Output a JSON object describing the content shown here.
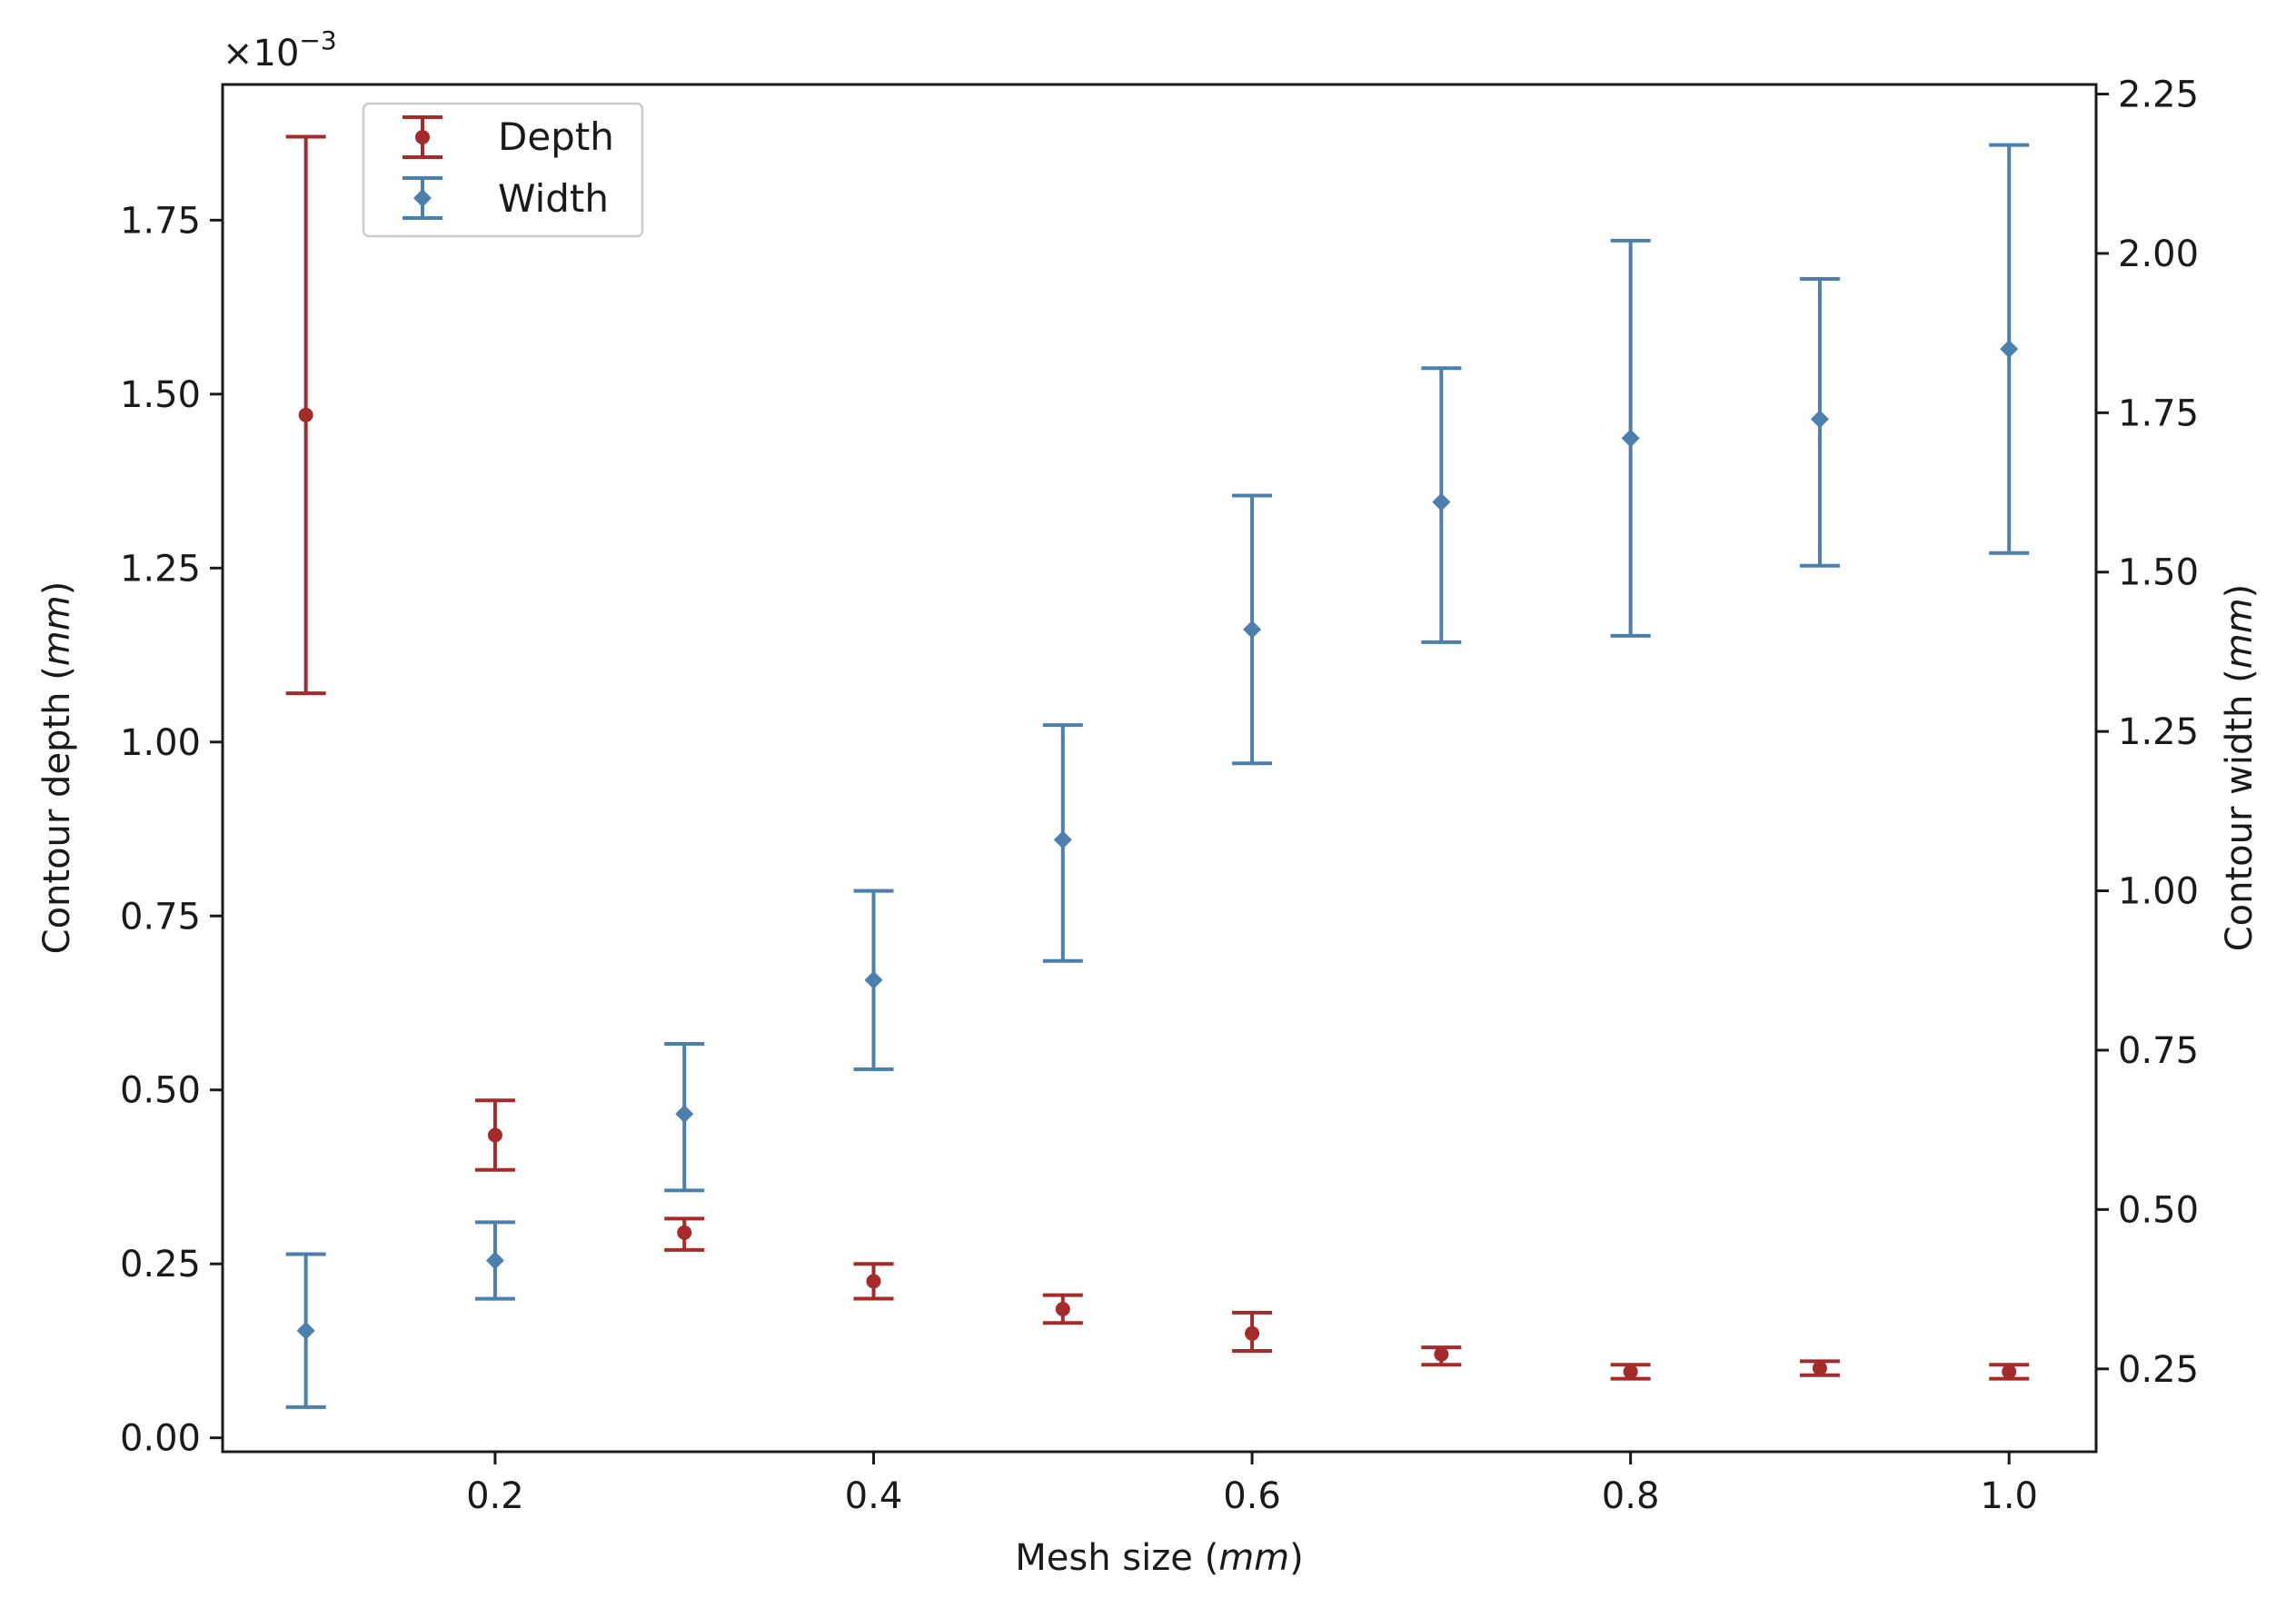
{
  "chart_data": {
    "type": "errorbar",
    "title": "",
    "xlabel": "Mesh size",
    "xlabel_unit": "mm",
    "ylabel_left": "Contour depth",
    "ylabel_left_unit": "mm",
    "ylabel_right": "Contour width",
    "ylabel_right_unit": "mm",
    "left_offset_text": "×10",
    "left_offset_exp": "−3",
    "xlim": [
      0.056,
      1.046
    ],
    "ylim_left": [
      -0.02,
      1.945
    ],
    "ylim_right": [
      0.12,
      2.265
    ],
    "x_ticks": [
      0.2,
      0.4,
      0.6,
      0.8,
      1.0
    ],
    "x_tick_labels": [
      "0.2",
      "0.4",
      "0.6",
      "0.8",
      "1.0"
    ],
    "y_left_ticks": [
      0.0,
      0.25,
      0.5,
      0.75,
      1.0,
      1.25,
      1.5,
      1.75
    ],
    "y_left_tick_labels": [
      "0.00",
      "0.25",
      "0.50",
      "0.75",
      "1.00",
      "1.25",
      "1.50",
      "1.75"
    ],
    "y_right_ticks": [
      0.25,
      0.5,
      0.75,
      1.0,
      1.25,
      1.5,
      1.75,
      2.0,
      2.25
    ],
    "y_right_tick_labels": [
      "0.25",
      "0.50",
      "0.75",
      "1.00",
      "1.25",
      "1.50",
      "1.75",
      "2.00",
      "2.25"
    ],
    "legend": {
      "location": "upper-left",
      "entries": [
        "Depth",
        "Width"
      ]
    },
    "series": [
      {
        "name": "Depth",
        "axis": "left",
        "color": "#a52a2a",
        "marker": "circle",
        "x": [
          0.1,
          0.2,
          0.3,
          0.4,
          0.5,
          0.6,
          0.7,
          0.8,
          0.9,
          1.0
        ],
        "y": [
          1.47,
          0.435,
          0.295,
          0.225,
          0.185,
          0.15,
          0.12,
          0.095,
          0.1,
          0.095
        ],
        "lower": [
          1.07,
          0.385,
          0.27,
          0.2,
          0.165,
          0.125,
          0.105,
          0.085,
          0.09,
          0.085
        ],
        "upper": [
          1.87,
          0.485,
          0.315,
          0.25,
          0.205,
          0.18,
          0.13,
          0.105,
          0.11,
          0.105
        ]
      },
      {
        "name": "Width",
        "axis": "right",
        "color": "#4a7fae",
        "marker": "diamond",
        "x": [
          0.1,
          0.2,
          0.3,
          0.4,
          0.5,
          0.6,
          0.7,
          0.8,
          0.9,
          1.0
        ],
        "y": [
          0.31,
          0.42,
          0.65,
          0.86,
          1.08,
          1.41,
          1.61,
          1.71,
          1.74,
          1.85
        ],
        "lower": [
          0.19,
          0.36,
          0.53,
          0.72,
          0.89,
          1.2,
          1.39,
          1.4,
          1.51,
          1.53
        ],
        "upper": [
          0.43,
          0.48,
          0.76,
          1.0,
          1.26,
          1.62,
          1.82,
          2.02,
          1.96,
          2.17
        ]
      }
    ]
  }
}
